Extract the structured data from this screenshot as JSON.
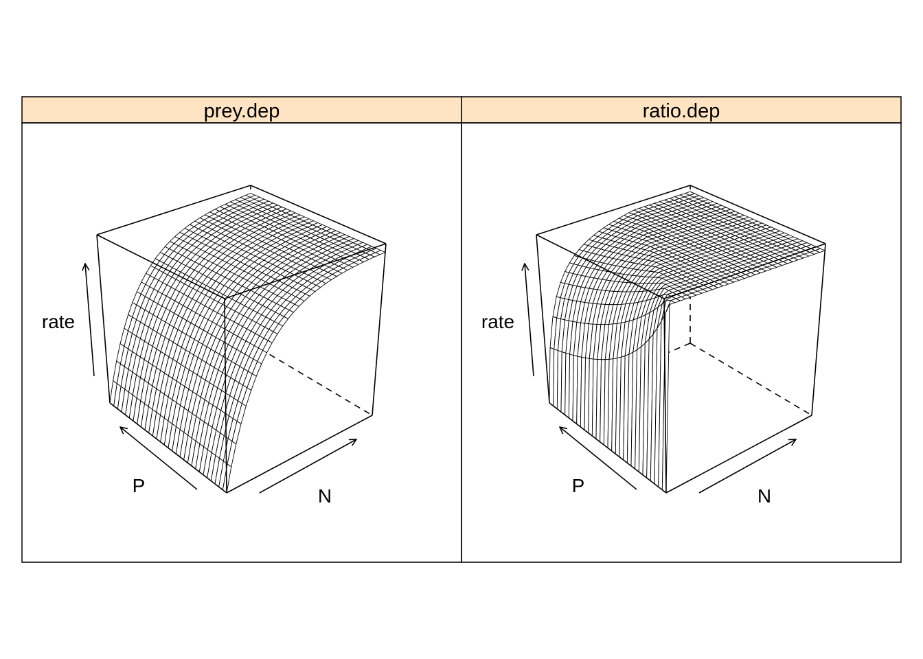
{
  "chart_data": [
    {
      "type": "wireframe",
      "panel_title": "prey.dep",
      "xlabel": "N",
      "ylabel": "P",
      "zlabel": "rate",
      "description": "rate rises with N and saturates; independent of P",
      "grid": false
    },
    {
      "type": "wireframe",
      "panel_title": "ratio.dep",
      "xlabel": "N",
      "ylabel": "P",
      "zlabel": "rate",
      "description": "rate depends on the ratio N/P; saturating surface",
      "grid": false
    }
  ],
  "colors": {
    "strip_background": "#ffe4c4",
    "frame": "#000000",
    "wire": "#000000",
    "surface_fill": "#ffffff"
  }
}
